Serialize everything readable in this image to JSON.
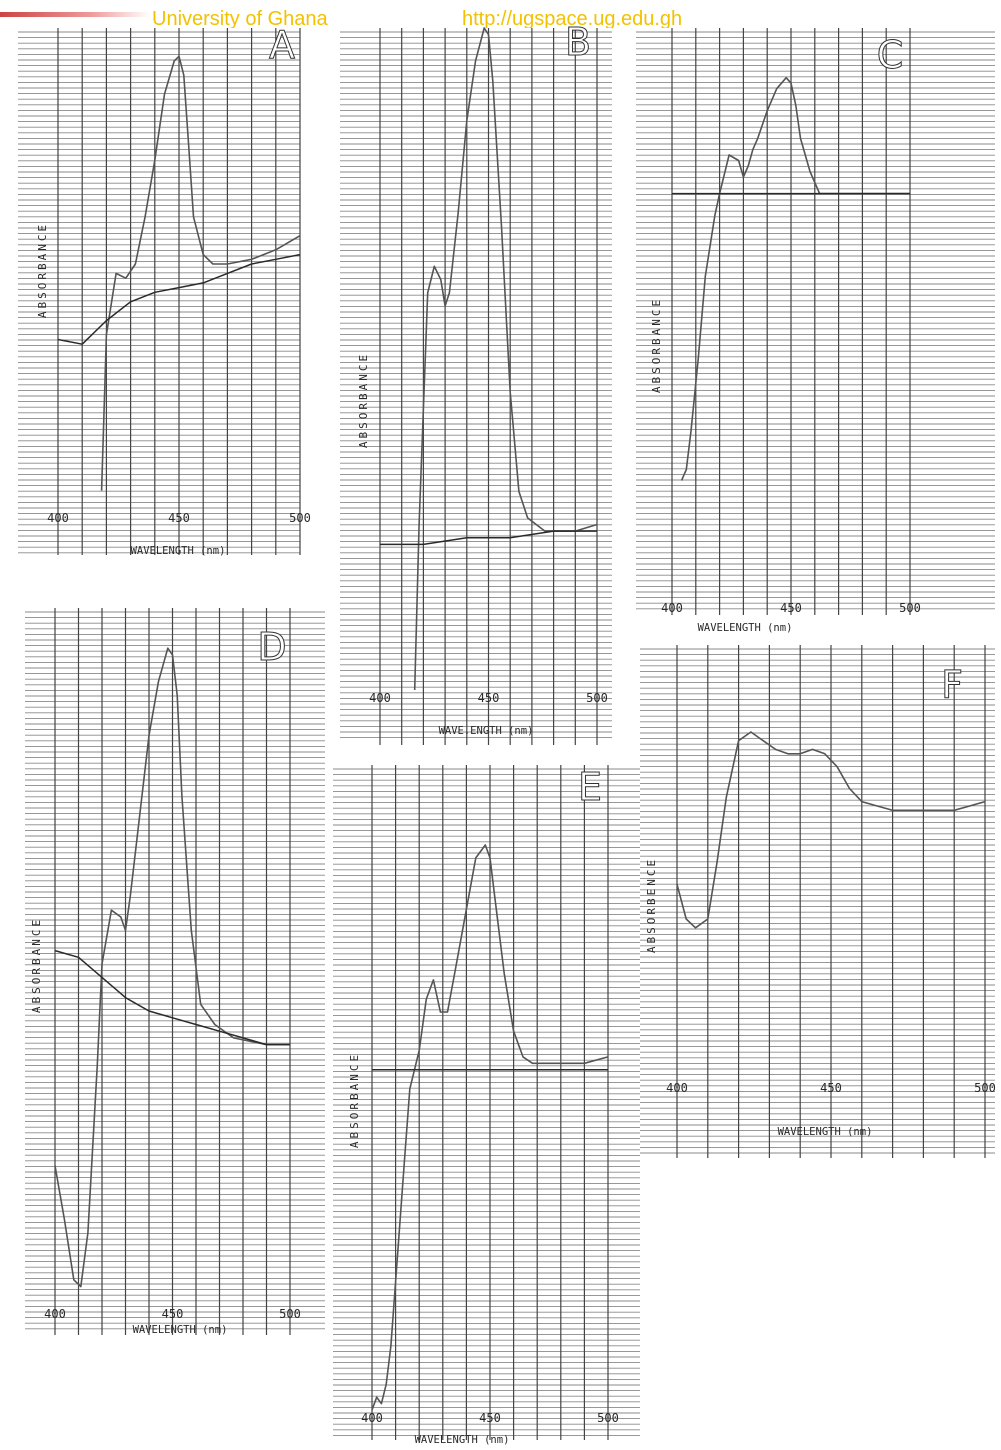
{
  "watermark": {
    "institution": "University of Ghana",
    "url": "http://ugspace.ug.edu.gh"
  },
  "colors": {
    "trace": "#555555",
    "grid": "#8a8a8a",
    "ink": "#2a2a2a",
    "watermark": "#f2c200"
  },
  "chart_data": [
    {
      "panel": "A",
      "type": "line",
      "xlabel": "WAVELENGTH  (nm)",
      "ylabel": "ABSORBANCE",
      "xlim": [
        400,
        500
      ],
      "ylim": [
        0,
        1
      ],
      "xticks": [
        400,
        450,
        500
      ],
      "series": [
        {
          "x": [
            418,
            420,
            424,
            428,
            432,
            436,
            440,
            444,
            448,
            450,
            452,
            454,
            456,
            460,
            464,
            470,
            480,
            490,
            500
          ],
          "y": [
            0.02,
            0.35,
            0.48,
            0.47,
            0.5,
            0.6,
            0.72,
            0.86,
            0.93,
            0.94,
            0.9,
            0.75,
            0.6,
            0.52,
            0.5,
            0.5,
            0.51,
            0.53,
            0.56
          ]
        },
        {
          "x": [
            400,
            410,
            420,
            430,
            440,
            450,
            460,
            470,
            480,
            490,
            500
          ],
          "y": [
            0.34,
            0.33,
            0.38,
            0.42,
            0.44,
            0.45,
            0.46,
            0.48,
            0.5,
            0.51,
            0.52
          ]
        }
      ]
    },
    {
      "panel": "B",
      "type": "line",
      "xlabel": "WAVE.ENGTH  (nm)",
      "ylabel": "ABSORBANCE",
      "xlim": [
        400,
        500
      ],
      "ylim": [
        0,
        1
      ],
      "xticks": [
        400,
        450,
        500
      ],
      "series": [
        {
          "x": [
            416,
            418,
            422,
            425,
            428,
            430,
            432,
            436,
            440,
            444,
            448,
            450,
            452,
            456,
            460,
            464,
            468,
            472,
            476,
            480,
            490,
            500
          ],
          "y": [
            0.0,
            0.25,
            0.6,
            0.64,
            0.62,
            0.58,
            0.6,
            0.72,
            0.86,
            0.95,
            1.0,
            0.99,
            0.92,
            0.7,
            0.45,
            0.3,
            0.26,
            0.25,
            0.24,
            0.24,
            0.24,
            0.25
          ]
        },
        {
          "x": [
            400,
            420,
            440,
            460,
            480,
            500
          ],
          "y": [
            0.22,
            0.22,
            0.23,
            0.23,
            0.24,
            0.24
          ]
        }
      ]
    },
    {
      "panel": "C",
      "type": "line",
      "xlabel": "WAVELENGTH  (nm)",
      "ylabel": "ABSORBANCE",
      "xlim": [
        400,
        500
      ],
      "ylim": [
        0,
        1
      ],
      "xticks": [
        400,
        450,
        500
      ],
      "series": [
        {
          "x": [
            404,
            406,
            408,
            411,
            414,
            418,
            420,
            424,
            428,
            430,
            432,
            434,
            436,
            440,
            444,
            448,
            450,
            452,
            454,
            458,
            462,
            466,
            470,
            480,
            490,
            500
          ],
          "y": [
            0.18,
            0.2,
            0.27,
            0.4,
            0.55,
            0.66,
            0.7,
            0.77,
            0.76,
            0.73,
            0.75,
            0.78,
            0.8,
            0.85,
            0.89,
            0.91,
            0.9,
            0.86,
            0.8,
            0.74,
            0.7,
            0.7,
            0.7,
            0.7,
            0.7,
            0.7
          ]
        },
        {
          "x": [
            400,
            500
          ],
          "y": [
            0.7,
            0.7
          ]
        }
      ]
    },
    {
      "panel": "D",
      "type": "line",
      "xlabel": "WAVELENGTH  (nm)",
      "ylabel": "ABSORBANCE",
      "xlim": [
        400,
        500
      ],
      "ylim": [
        0,
        1
      ],
      "xticks": [
        400,
        450,
        500
      ],
      "series": [
        {
          "x": [
            400,
            404,
            408,
            411,
            414,
            418,
            420,
            424,
            428,
            430,
            432,
            436,
            440,
            444,
            448,
            450,
            452,
            454,
            458,
            462,
            468,
            476,
            490,
            500
          ],
          "y": [
            0.2,
            0.12,
            0.03,
            0.02,
            0.1,
            0.35,
            0.5,
            0.58,
            0.57,
            0.55,
            0.6,
            0.72,
            0.84,
            0.92,
            0.97,
            0.96,
            0.9,
            0.75,
            0.55,
            0.44,
            0.41,
            0.39,
            0.38,
            0.38
          ]
        },
        {
          "x": [
            400,
            410,
            420,
            430,
            440,
            450,
            460,
            470,
            480,
            490,
            500
          ],
          "y": [
            0.52,
            0.51,
            0.48,
            0.45,
            0.43,
            0.42,
            0.41,
            0.4,
            0.39,
            0.38,
            0.38
          ]
        }
      ]
    },
    {
      "panel": "E",
      "type": "line",
      "xlabel": "WAVELENGTH  (nm)",
      "ylabel": "ABSORBANCE",
      "xlim": [
        400,
        500
      ],
      "ylim": [
        0,
        1
      ],
      "xticks": [
        400,
        450,
        500
      ],
      "series": [
        {
          "x": [
            400,
            402,
            404,
            406,
            408,
            410,
            412,
            414,
            416,
            418,
            420,
            423,
            426,
            429,
            432,
            436,
            440,
            444,
            448,
            450,
            452,
            456,
            460,
            464,
            468,
            472,
            480,
            490,
            500
          ],
          "y": [
            0.0,
            0.02,
            0.01,
            0.04,
            0.1,
            0.2,
            0.3,
            0.4,
            0.5,
            0.53,
            0.56,
            0.64,
            0.67,
            0.62,
            0.62,
            0.7,
            0.78,
            0.86,
            0.88,
            0.86,
            0.8,
            0.68,
            0.59,
            0.55,
            0.54,
            0.54,
            0.54,
            0.54,
            0.55
          ]
        },
        {
          "x": [
            400,
            500
          ],
          "y": [
            0.53,
            0.53
          ]
        }
      ]
    },
    {
      "panel": "F",
      "type": "line",
      "xlabel": "WAVELENGTH  (nm)",
      "ylabel": "ABSORBENCE",
      "xlim": [
        400,
        500
      ],
      "ylim": [
        0,
        1
      ],
      "xticks": [
        400,
        450,
        500
      ],
      "series": [
        {
          "x": [
            400,
            403,
            406,
            410,
            413,
            416,
            420,
            424,
            428,
            432,
            436,
            440,
            444,
            448,
            452,
            456,
            460,
            465,
            470,
            475,
            480,
            485,
            490,
            495,
            500
          ],
          "y": [
            0.45,
            0.37,
            0.35,
            0.37,
            0.5,
            0.65,
            0.78,
            0.8,
            0.78,
            0.76,
            0.75,
            0.75,
            0.76,
            0.75,
            0.72,
            0.67,
            0.64,
            0.63,
            0.62,
            0.62,
            0.62,
            0.62,
            0.62,
            0.63,
            0.64
          ]
        }
      ]
    }
  ]
}
